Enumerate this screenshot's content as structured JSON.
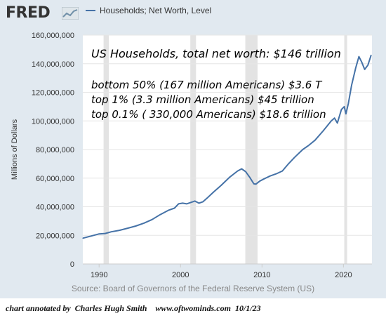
{
  "header": {
    "logo_text": "FRED",
    "logo_icon": "trend-chart-icon",
    "legend_label": "Households; Net Worth, Level"
  },
  "source_text": "Source: Board of Governors of the Federal Reserve System (US)",
  "credit_text": "chart annotated by  Charles Hugh Smith    www.oftwominds.com  10/1/23",
  "colors": {
    "series": "#4572a7",
    "recession": "#e3e3e3",
    "grid": "#e6e6e6",
    "frame": "#e1e9f0"
  },
  "chart_data": {
    "type": "line",
    "title": "",
    "xlabel": "",
    "ylabel": "Millions of Dollars",
    "xlim": [
      1988.0,
      2023.5
    ],
    "ylim": [
      0,
      160000000
    ],
    "y_ticks": [
      0,
      20000000,
      40000000,
      60000000,
      80000000,
      100000000,
      120000000,
      140000000,
      160000000
    ],
    "y_tick_labels": [
      "0",
      "20,000,000",
      "40,000,000",
      "60,000,000",
      "80,000,000",
      "100,000,000",
      "120,000,000",
      "140,000,000",
      "160,000,000"
    ],
    "x_ticks": [
      1990,
      2000,
      2010,
      2020
    ],
    "x_tick_labels": [
      "1990",
      "2000",
      "2010",
      "2020"
    ],
    "grid": "horizontal",
    "recessions": [
      [
        1990.55,
        1991.2
      ],
      [
        2001.2,
        2001.9
      ],
      [
        2007.95,
        2009.45
      ],
      [
        2020.1,
        2020.45
      ]
    ],
    "series": [
      {
        "name": "Households; Net Worth, Level",
        "x": [
          1988.0,
          1989.0,
          1990.0,
          1990.75,
          1991.5,
          1992.5,
          1993.5,
          1994.5,
          1995.5,
          1996.5,
          1997.5,
          1998.5,
          1999.25,
          1999.75,
          2000.25,
          2000.75,
          2001.25,
          2001.75,
          2002.25,
          2002.75,
          2003.25,
          2004.0,
          2005.0,
          2006.0,
          2007.0,
          2007.5,
          2008.0,
          2008.5,
          2009.0,
          2009.25,
          2009.75,
          2010.25,
          2011.0,
          2011.75,
          2012.5,
          2013.25,
          2014.0,
          2015.0,
          2015.75,
          2016.5,
          2017.5,
          2018.5,
          2018.9,
          2019.25,
          2019.75,
          2020.1,
          2020.3,
          2020.6,
          2021.0,
          2021.5,
          2021.9,
          2022.25,
          2022.6,
          2023.0,
          2023.4
        ],
        "values": [
          18000000,
          19500000,
          21000000,
          21300000,
          22500000,
          23500000,
          25000000,
          26500000,
          28500000,
          31000000,
          34500000,
          37500000,
          39000000,
          42000000,
          42500000,
          42000000,
          43000000,
          44000000,
          42500000,
          43500000,
          46000000,
          50000000,
          55000000,
          60500000,
          65000000,
          66500000,
          64500000,
          60500000,
          56000000,
          55800000,
          58000000,
          59500000,
          61500000,
          63000000,
          65000000,
          70000000,
          74500000,
          80000000,
          83000000,
          86500000,
          93000000,
          100000000,
          102000000,
          98500000,
          108000000,
          110000000,
          105000000,
          112000000,
          125000000,
          137000000,
          145000000,
          141000000,
          136000000,
          139000000,
          146000000
        ]
      }
    ],
    "annotations": [
      "US Households, total net worth: $146 trillion",
      "bottom 50% (167 million Americans)  $3.6 T",
      "top 1% (3.3 million Americans)  $45 trillion",
      "top 0.1% ( 330,000 Americans) $18.6 trillion"
    ]
  }
}
